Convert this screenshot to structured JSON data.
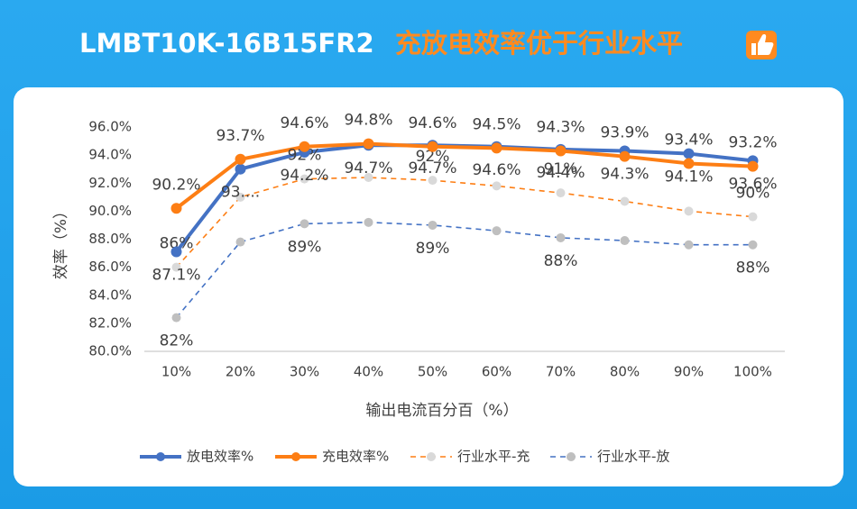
{
  "chart_data": {
    "type": "line",
    "title": "LMBT10K-16B15FR2",
    "title_highlight": "充放电效率优于行业水平",
    "x_label": "输出电流百分百（%）",
    "y_label": "效率（%）",
    "categories": [
      "10%",
      "20%",
      "30%",
      "40%",
      "50%",
      "60%",
      "70%",
      "80%",
      "90%",
      "100%"
    ],
    "ylim": [
      80,
      96
    ],
    "yticks": [
      {
        "value": 80,
        "label": "80.0%"
      },
      {
        "value": 82,
        "label": "82.0%"
      },
      {
        "value": 84,
        "label": "84.0%"
      },
      {
        "value": 86,
        "label": "86.0%"
      },
      {
        "value": 88,
        "label": "88.0%"
      },
      {
        "value": 90,
        "label": "90.0%"
      },
      {
        "value": 92,
        "label": "92.0%"
      },
      {
        "value": 94,
        "label": "94.0%"
      },
      {
        "value": 96,
        "label": "96.0%"
      }
    ],
    "grid": false,
    "legend": "bottom",
    "series": [
      {
        "name": "放电效率%",
        "color": "#4472c4",
        "marker_color": "#4472c4",
        "dashed": false,
        "label_position": "below",
        "values": [
          87.1,
          93.0,
          94.2,
          94.7,
          94.7,
          94.6,
          94.4,
          94.3,
          94.1,
          93.6
        ],
        "value_labels": [
          "87.1%",
          "93....",
          "94.2%",
          "94.7%",
          "94.7%",
          "94.6%",
          "94.4%",
          "94.3%",
          "94.1%",
          "93.6%"
        ]
      },
      {
        "name": "充电效率%",
        "color": "#fd7e14",
        "marker_color": "#fd7e14",
        "dashed": false,
        "label_position": "above",
        "values": [
          90.2,
          93.7,
          94.6,
          94.8,
          94.6,
          94.5,
          94.3,
          93.9,
          93.4,
          93.2
        ],
        "value_labels": [
          "90.2%",
          "93.7%",
          "94.6%",
          "94.8%",
          "94.6%",
          "94.5%",
          "94.3%",
          "93.9%",
          "93.4%",
          "93.2%"
        ]
      },
      {
        "name": "行业水平-充",
        "color": "#fd7e14",
        "marker_color": "#d9d9d9",
        "dashed": true,
        "label_position": "above",
        "values": [
          86.0,
          91.0,
          92.3,
          92.4,
          92.2,
          91.8,
          91.3,
          90.7,
          90.0,
          89.6
        ],
        "value_labels": [
          "86%",
          null,
          "92%",
          null,
          "92%",
          null,
          "91%",
          null,
          null,
          "90%"
        ]
      },
      {
        "name": "行业水平-放",
        "color": "#4472c4",
        "marker_color": "#bfbfbf",
        "dashed": true,
        "label_position": "below",
        "values": [
          82.4,
          87.8,
          89.1,
          89.2,
          89.0,
          88.6,
          88.1,
          87.9,
          87.6,
          87.6
        ],
        "value_labels": [
          "82%",
          null,
          "89%",
          null,
          "89%",
          null,
          "88%",
          null,
          null,
          "88%"
        ]
      }
    ]
  }
}
